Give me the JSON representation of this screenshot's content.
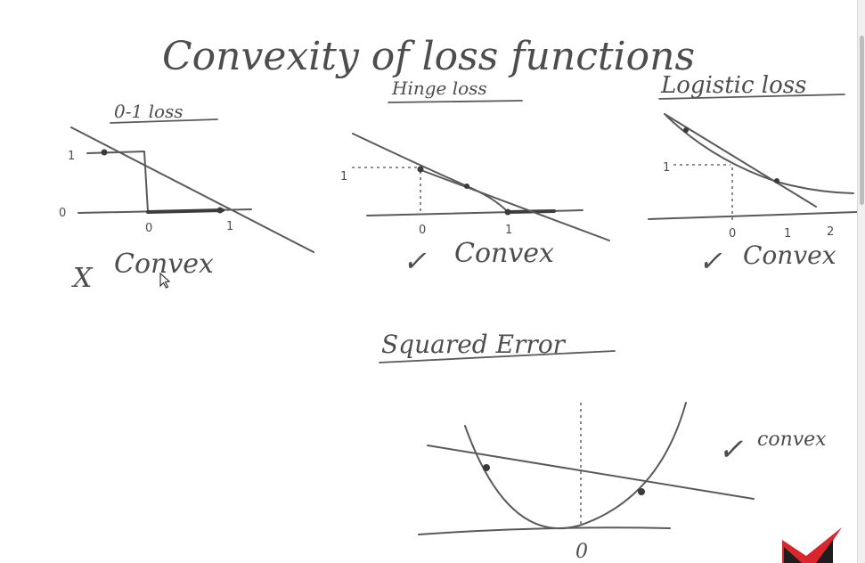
{
  "title": "Convexity of loss functions",
  "panels": {
    "zero_one": {
      "title": "0-1 loss",
      "y_tick": "1",
      "origin_tick": "0",
      "x_ticks": [
        "0",
        "1"
      ],
      "verdict_mark": "X",
      "verdict": "Convex"
    },
    "hinge": {
      "title": "Hinge loss",
      "y_tick": "1",
      "x_ticks": [
        "0",
        "1"
      ],
      "verdict_mark": "✓",
      "verdict": "Convex"
    },
    "logistic": {
      "title": "Logistic loss",
      "y_tick": "1",
      "x_ticks": [
        "0",
        "1",
        "2"
      ],
      "verdict_mark": "✓",
      "verdict": "Convex"
    },
    "squared": {
      "title": "Squared Error",
      "x_tick": "0",
      "verdict_mark": "✓",
      "verdict": "convex"
    }
  },
  "colors": {
    "ink": "#5a5a5a",
    "logo_red": "#d9262c",
    "logo_dark": "#1e1e1e"
  },
  "icons": [
    "mouse-cursor-icon",
    "brand-logo-icon"
  ]
}
